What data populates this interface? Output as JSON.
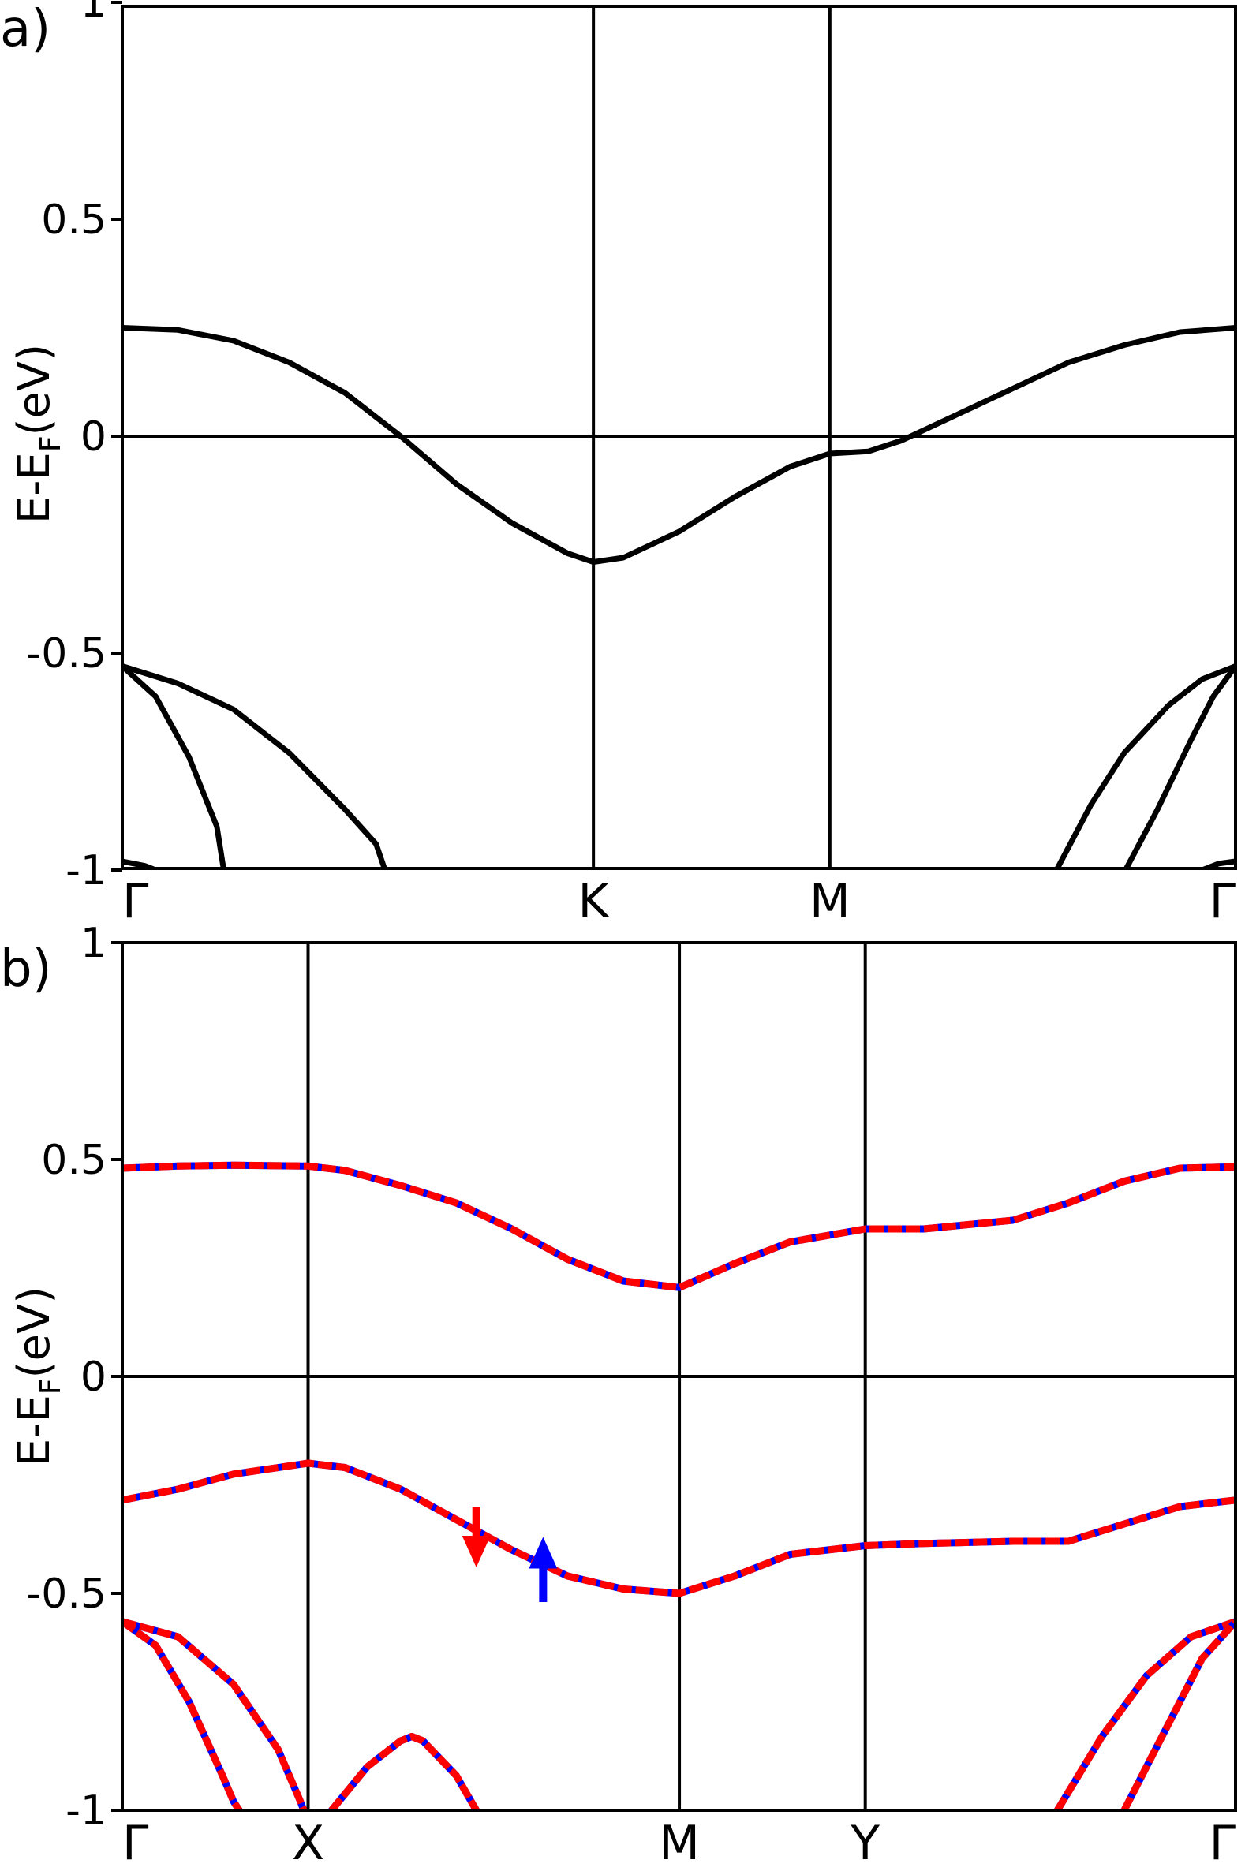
{
  "chart_data": [
    {
      "type": "line",
      "panel_label": "a)",
      "ylabel": "E-E",
      "ylabel_sub": "F",
      "ylabel_unit": "(eV)",
      "ylim": [
        -1.03,
        1.0
      ],
      "yticks": [
        1,
        0.5,
        0,
        -0.5,
        -1
      ],
      "ytick_labels": [
        "1",
        "0.5",
        "0",
        "-0.5",
        "-1"
      ],
      "k_points": [
        {
          "label": "Γ",
          "x": 0.0
        },
        {
          "label": "K",
          "x": 0.4232
        },
        {
          "label": "M",
          "x": 0.6356
        },
        {
          "label": "Γ",
          "x": 1.0
        }
      ],
      "fermi_level": 0,
      "series": [
        {
          "color": "#000000",
          "points": [
            [
              0,
              0.25
            ],
            [
              0.05,
              0.245
            ],
            [
              0.1,
              0.22
            ],
            [
              0.15,
              0.17
            ],
            [
              0.2,
              0.1
            ],
            [
              0.25,
              0.0
            ],
            [
              0.3,
              -0.11
            ],
            [
              0.35,
              -0.2
            ],
            [
              0.4,
              -0.27
            ],
            [
              0.4232,
              -0.29
            ],
            [
              0.45,
              -0.28
            ],
            [
              0.5,
              -0.22
            ],
            [
              0.55,
              -0.14
            ],
            [
              0.6,
              -0.07
            ],
            [
              0.6356,
              -0.04
            ],
            [
              0.67,
              -0.035
            ],
            [
              0.7,
              -0.01
            ],
            [
              0.75,
              0.05
            ],
            [
              0.8,
              0.11
            ],
            [
              0.85,
              0.17
            ],
            [
              0.9,
              0.21
            ],
            [
              0.95,
              0.24
            ],
            [
              1.0,
              0.25
            ]
          ]
        },
        {
          "color": "#000000",
          "points": [
            [
              0,
              -0.53
            ],
            [
              0.05,
              -0.57
            ],
            [
              0.1,
              -0.63
            ],
            [
              0.15,
              -0.73
            ],
            [
              0.2,
              -0.86
            ],
            [
              0.228,
              -0.94
            ],
            [
              0.24,
              -1.03
            ]
          ]
        },
        {
          "color": "#000000",
          "points": [
            [
              0,
              -0.53
            ],
            [
              0.03,
              -0.6
            ],
            [
              0.06,
              -0.74
            ],
            [
              0.085,
              -0.9
            ],
            [
              0.093,
              -1.03
            ]
          ]
        },
        {
          "color": "#000000",
          "points": [
            [
              0.833,
              -1.03
            ],
            [
              0.87,
              -0.85
            ],
            [
              0.9,
              -0.73
            ],
            [
              0.94,
              -0.62
            ],
            [
              0.97,
              -0.56
            ],
            [
              1.0,
              -0.53
            ]
          ]
        },
        {
          "color": "#000000",
          "points": [
            [
              0.895,
              -1.03
            ],
            [
              0.93,
              -0.86
            ],
            [
              0.96,
              -0.7
            ],
            [
              0.98,
              -0.6
            ],
            [
              1.0,
              -0.53
            ]
          ]
        },
        {
          "color": "#000000",
          "points": [
            [
              0,
              -0.98
            ],
            [
              0.02,
              -0.99
            ],
            [
              0.04,
              -1.01
            ],
            [
              0.045,
              -1.03
            ]
          ]
        },
        {
          "color": "#000000",
          "points": [
            [
              0.96,
              -1.03
            ],
            [
              0.97,
              -1.0
            ],
            [
              0.985,
              -0.985
            ],
            [
              1.0,
              -0.98
            ]
          ]
        }
      ]
    },
    {
      "type": "line",
      "panel_label": "b)",
      "ylabel": "E-E",
      "ylabel_sub": "F",
      "ylabel_unit": "(eV)",
      "ylim": [
        -1.0,
        1.0
      ],
      "yticks": [
        1,
        0.5,
        0,
        -0.5,
        -1
      ],
      "ytick_labels": [
        "1",
        "0.5",
        "0",
        "-0.5",
        "-1"
      ],
      "k_points": [
        {
          "label": "Γ",
          "x": 0.0
        },
        {
          "label": "X",
          "x": 0.1669
        },
        {
          "label": "M",
          "x": 0.5004
        },
        {
          "label": "Y",
          "x": 0.6674
        },
        {
          "label": "Γ",
          "x": 1.0
        }
      ],
      "fermi_level": 0,
      "spin_colors": {
        "up": "#0000ff",
        "down": "#ff0000"
      },
      "spin_markers": [
        {
          "spin": "down",
          "color": "#ff0000",
          "direction": "down",
          "x": 0.318,
          "y_from": -0.3,
          "y_to": -0.44
        },
        {
          "spin": "up",
          "color": "#0000ff",
          "direction": "up",
          "x": 0.378,
          "y_from": -0.52,
          "y_to": -0.37
        }
      ],
      "series": [
        {
          "points": [
            [
              0,
              0.48
            ],
            [
              0.05,
              0.485
            ],
            [
              0.1,
              0.487
            ],
            [
              0.1669,
              0.485
            ],
            [
              0.2,
              0.475
            ],
            [
              0.25,
              0.44
            ],
            [
              0.3,
              0.4
            ],
            [
              0.35,
              0.34
            ],
            [
              0.4,
              0.27
            ],
            [
              0.45,
              0.22
            ],
            [
              0.5004,
              0.205
            ],
            [
              0.55,
              0.26
            ],
            [
              0.6,
              0.31
            ],
            [
              0.6674,
              0.34
            ],
            [
              0.72,
              0.34
            ],
            [
              0.8,
              0.36
            ],
            [
              0.85,
              0.4
            ],
            [
              0.9,
              0.45
            ],
            [
              0.95,
              0.48
            ],
            [
              1.0,
              0.483
            ]
          ]
        },
        {
          "points": [
            [
              0,
              -0.285
            ],
            [
              0.05,
              -0.26
            ],
            [
              0.1,
              -0.225
            ],
            [
              0.1669,
              -0.2
            ],
            [
              0.2,
              -0.21
            ],
            [
              0.25,
              -0.26
            ],
            [
              0.3,
              -0.33
            ],
            [
              0.35,
              -0.4
            ],
            [
              0.4,
              -0.46
            ],
            [
              0.45,
              -0.49
            ],
            [
              0.5004,
              -0.5
            ],
            [
              0.55,
              -0.46
            ],
            [
              0.6,
              -0.41
            ],
            [
              0.6674,
              -0.39
            ],
            [
              0.72,
              -0.385
            ],
            [
              0.8,
              -0.38
            ],
            [
              0.85,
              -0.38
            ],
            [
              0.9,
              -0.34
            ],
            [
              0.95,
              -0.3
            ],
            [
              1.0,
              -0.285
            ]
          ]
        },
        {
          "points": [
            [
              0,
              -0.565
            ],
            [
              0.03,
              -0.62
            ],
            [
              0.06,
              -0.75
            ],
            [
              0.09,
              -0.92
            ],
            [
              0.1,
              -0.98
            ],
            [
              0.105,
              -1.0
            ]
          ]
        },
        {
          "points": [
            [
              0,
              -0.565
            ],
            [
              0.05,
              -0.6
            ],
            [
              0.1,
              -0.71
            ],
            [
              0.14,
              -0.86
            ],
            [
              0.16,
              -0.98
            ],
            [
              0.163,
              -1.0
            ]
          ]
        },
        {
          "points": [
            [
              0.188,
              -1.0
            ],
            [
              0.22,
              -0.9
            ],
            [
              0.25,
              -0.84
            ],
            [
              0.26,
              -0.83
            ],
            [
              0.27,
              -0.84
            ],
            [
              0.3,
              -0.92
            ],
            [
              0.318,
              -1.0
            ]
          ]
        },
        {
          "points": [
            [
              0.84,
              -1.0
            ],
            [
              0.88,
              -0.83
            ],
            [
              0.92,
              -0.69
            ],
            [
              0.96,
              -0.6
            ],
            [
              1.0,
              -0.565
            ]
          ]
        },
        {
          "points": [
            [
              0.9,
              -1.0
            ],
            [
              0.94,
              -0.8
            ],
            [
              0.97,
              -0.65
            ],
            [
              1.0,
              -0.565
            ]
          ]
        }
      ]
    }
  ]
}
